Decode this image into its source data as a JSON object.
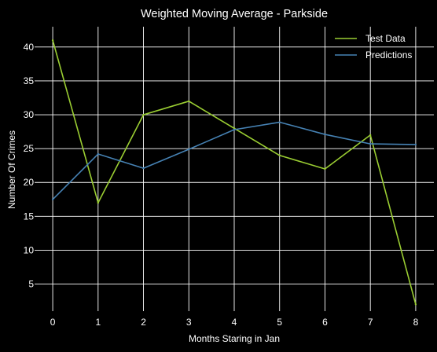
{
  "chart_data": {
    "type": "line",
    "title": "Weighted Moving Average - Parkside",
    "xlabel": "Months Staring in Jan",
    "ylabel": "Number Of Crimes",
    "x": [
      0,
      1,
      2,
      3,
      4,
      5,
      6,
      7,
      8
    ],
    "xticks": [
      "0",
      "1",
      "2",
      "3",
      "4",
      "5",
      "6",
      "7",
      "8"
    ],
    "yticks": [
      "5",
      "10",
      "15",
      "20",
      "25",
      "30",
      "35",
      "40"
    ],
    "xlim": [
      -0.4,
      8.4
    ],
    "ylim": [
      1,
      43
    ],
    "grid": true,
    "legend_position": "top-right",
    "background": "#000000",
    "series": [
      {
        "name": "Test Data",
        "color": "#9acd32",
        "values": [
          41,
          17,
          30,
          32,
          28,
          24,
          22,
          27,
          2
        ]
      },
      {
        "name": "Predictions",
        "color": "#4682b4",
        "values": [
          17.5,
          24.2,
          22.1,
          24.9,
          27.8,
          28.9,
          27.1,
          25.7,
          25.6
        ]
      }
    ]
  }
}
